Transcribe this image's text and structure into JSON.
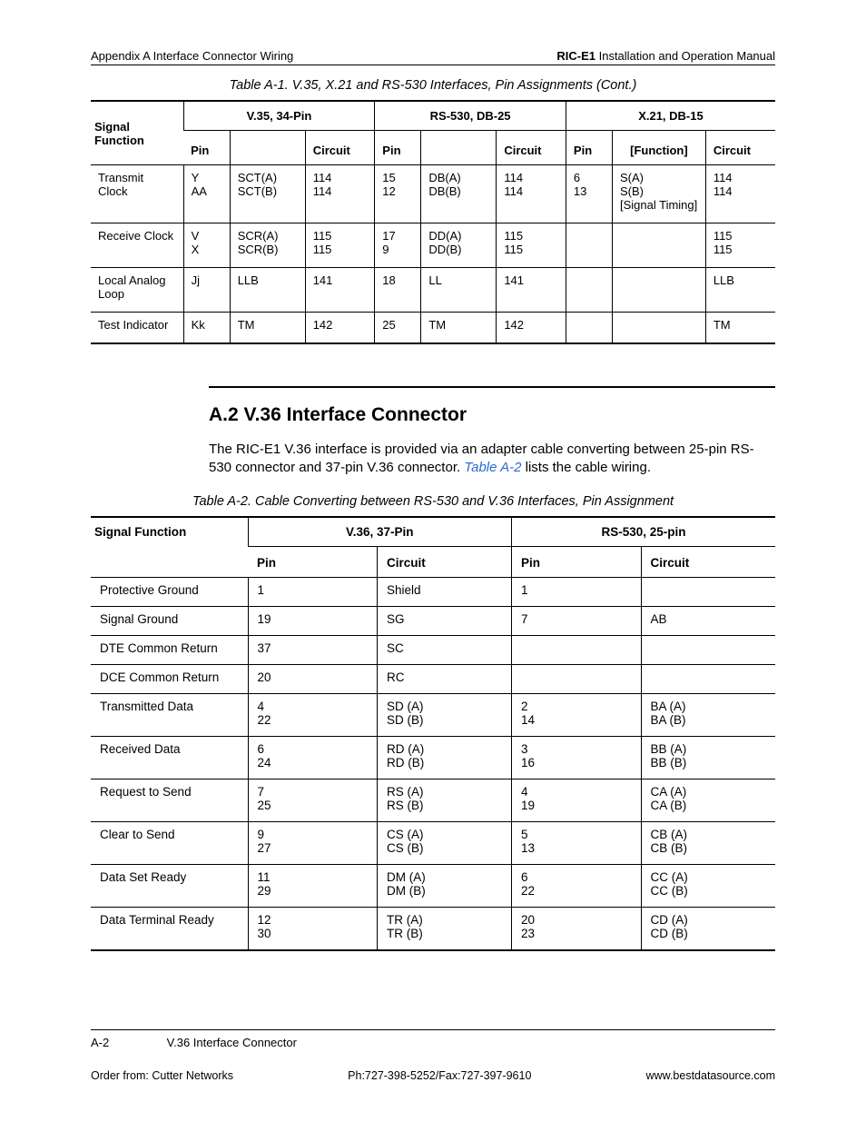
{
  "header": {
    "left": "Appendix A  Interface Connector Wiring",
    "right_bold": "RIC-E1",
    "right_rest": " Installation and Operation Manual"
  },
  "table1": {
    "caption": "Table A-1.  V.35, X.21 and RS-530 Interfaces, Pin Assignments (Cont.)",
    "group_headers": [
      "Signal Function",
      "V.35, 34-Pin",
      "RS-530, DB-25",
      "X.21, DB-15"
    ],
    "sub_headers": [
      "Pin",
      "",
      "Circuit",
      "Pin",
      "",
      "Circuit",
      "Pin",
      "[Function]",
      "Circuit"
    ],
    "rows": [
      {
        "sig": "Transmit Clock",
        "c": [
          "Y\nAA",
          "SCT(A)\nSCT(B)",
          "114\n114",
          "15\n12",
          "DB(A)\nDB(B)",
          "114\n114",
          "6\n13",
          "S(A)\nS(B)\n[Signal Timing]",
          "114\n114"
        ]
      },
      {
        "sig": "Receive Clock",
        "c": [
          "V\nX",
          "SCR(A)\nSCR(B)",
          "115\n115",
          "17\n9",
          "DD(A)\nDD(B)",
          "115\n115",
          "",
          "",
          "115\n115"
        ]
      },
      {
        "sig": "Local Analog Loop",
        "c": [
          "Jj",
          "LLB",
          "141",
          "18",
          "LL",
          "141",
          "",
          "",
          "LLB"
        ]
      },
      {
        "sig": "Test Indicator",
        "c": [
          "Kk",
          "TM",
          "142",
          "25",
          "TM",
          "142",
          "",
          "",
          "TM"
        ]
      }
    ]
  },
  "section": {
    "title": "A.2  V.36 Interface Connector",
    "para_pre": "The RIC-E1 V.36 interface is provided via an adapter cable converting between 25-pin RS-530 connector and 37-pin V.36 connector. ",
    "link": "Table A-2",
    "para_post": " lists the cable wiring."
  },
  "table2": {
    "caption": "Table A-2.  Cable Converting between RS-530 and V.36 Interfaces, Pin Assignment",
    "group_headers": [
      "Signal Function",
      "V.36, 37-Pin",
      "RS-530, 25-pin"
    ],
    "sub_headers": [
      "Pin",
      "Circuit",
      "Pin",
      "Circuit"
    ],
    "rows": [
      {
        "sig": "Protective Ground",
        "c": [
          "1",
          "Shield",
          "1",
          ""
        ]
      },
      {
        "sig": "Signal Ground",
        "c": [
          "19",
          "SG",
          "7",
          "AB"
        ]
      },
      {
        "sig": "DTE Common Return",
        "c": [
          "37",
          "SC",
          "",
          ""
        ]
      },
      {
        "sig": "DCE Common Return",
        "c": [
          "20",
          "RC",
          "",
          ""
        ]
      },
      {
        "sig": "Transmitted Data",
        "c": [
          "4\n22",
          "SD (A)\nSD (B)",
          "2\n14",
          "BA (A)\nBA (B)"
        ]
      },
      {
        "sig": "Received Data",
        "c": [
          "6\n24",
          "RD (A)\nRD (B)",
          "3\n16",
          "BB (A)\nBB (B)"
        ]
      },
      {
        "sig": "Request to Send",
        "c": [
          "7\n25",
          "RS (A)\nRS (B)",
          "4\n19",
          "CA (A)\nCA (B)"
        ]
      },
      {
        "sig": "Clear to Send",
        "c": [
          "9\n27",
          "CS (A)\nCS (B)",
          "5\n13",
          "CB (A)\nCB (B)"
        ]
      },
      {
        "sig": "Data Set Ready",
        "c": [
          "11\n29",
          "DM (A)\nDM (B)",
          "6\n22",
          "CC (A)\nCC (B)"
        ]
      },
      {
        "sig": "Data Terminal Ready",
        "c": [
          "12\n30",
          "TR (A)\nTR (B)",
          "20\n23",
          "CD (A)\nCD (B)"
        ]
      }
    ]
  },
  "footer": {
    "page_num": "A-2",
    "section": "V.36 Interface Connector",
    "order": "Order from: Cutter Networks",
    "phone": "Ph:727-398-5252/Fax:727-397-9610",
    "url": "www.bestdatasource.com"
  }
}
